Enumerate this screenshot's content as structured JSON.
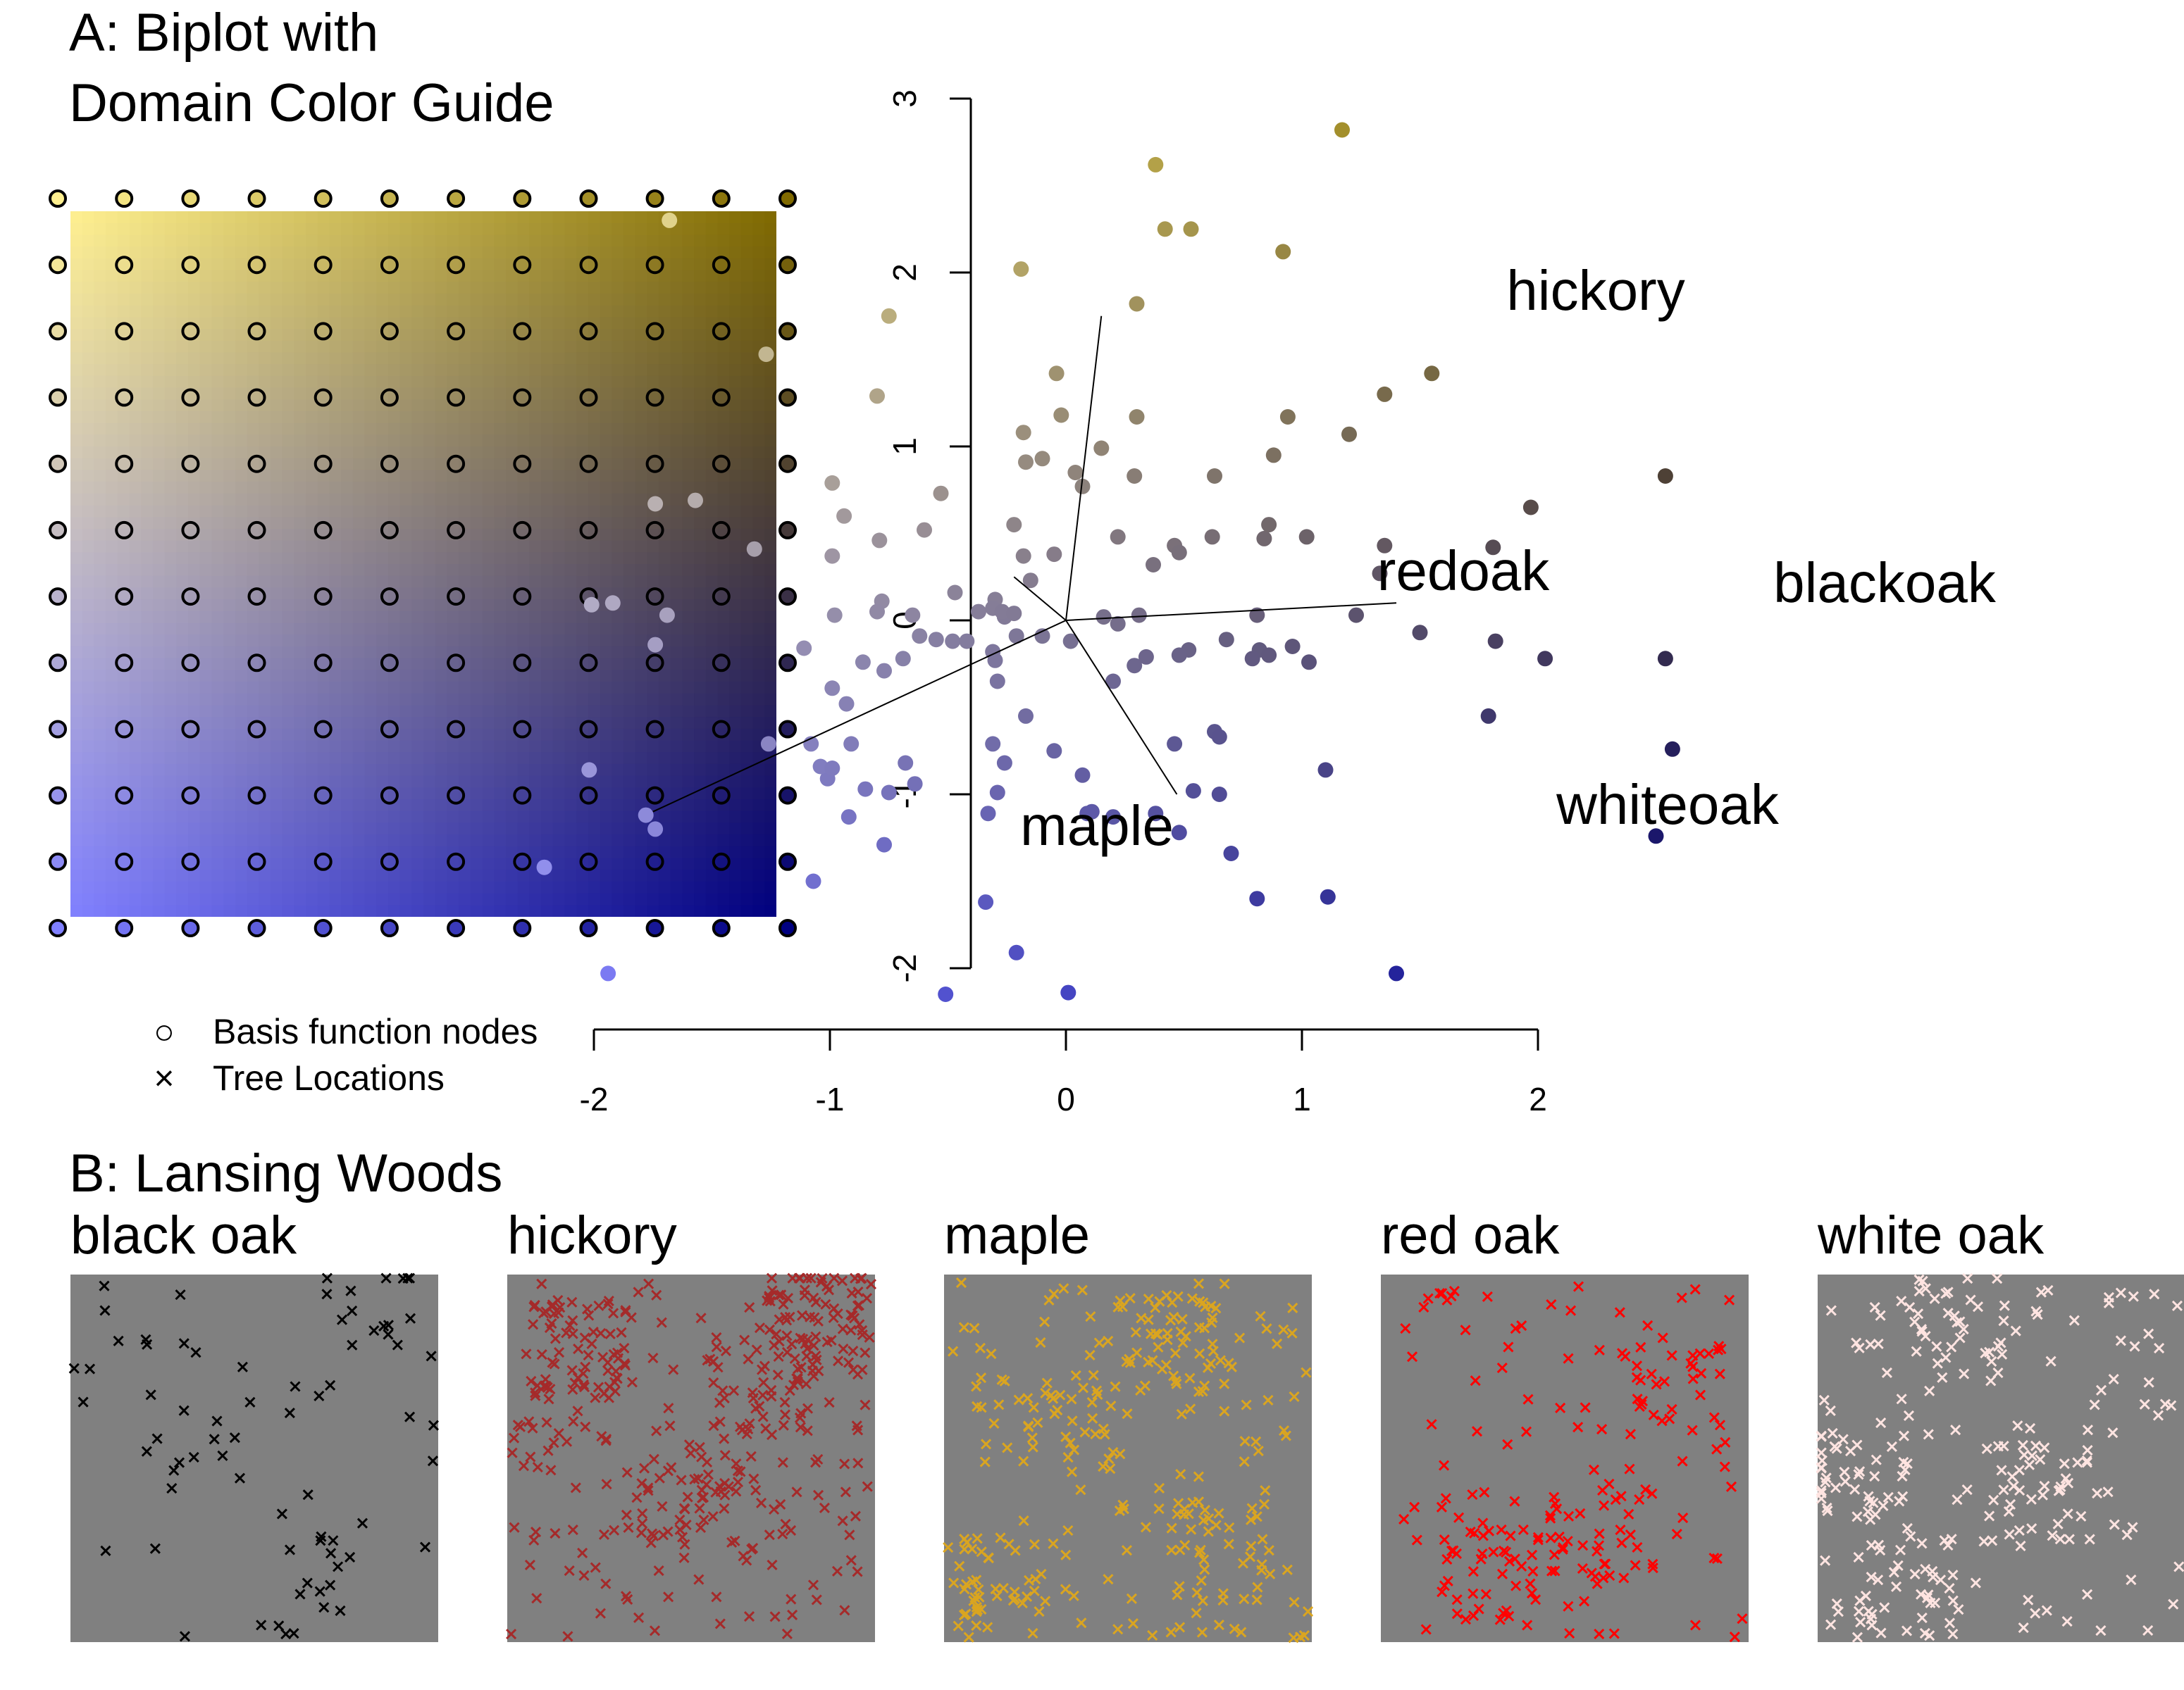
{
  "panel_a": {
    "title_line1": "A: Biplot with",
    "title_line2": "Domain Color Guide",
    "legend": {
      "nodes_label": "Basis function nodes",
      "nodes_symbol": "○",
      "trees_label": "Tree Locations",
      "trees_symbol": "×"
    }
  },
  "panel_b": {
    "title": "B: Lansing Woods"
  },
  "colors": {
    "corner_top_left": "#fff090",
    "corner_top_right": "#806a00",
    "corner_bottom_left": "#8080ff",
    "corner_bottom_right": "#000080",
    "plot_background": "#808080"
  },
  "chart_data": [
    {
      "type": "heatmap",
      "title": "A: Biplot with Domain Color Guide",
      "description_of_encoding": "",
      "grid_nodes": {
        "columns": 12,
        "rows": 12,
        "marker": "open circle"
      },
      "legend": [
        "Basis function nodes",
        "Tree Locations"
      ]
    },
    {
      "type": "scatter",
      "title": "",
      "xlabel": "",
      "ylabel": "",
      "xlim": [
        -2.1,
        2.7
      ],
      "ylim": [
        -2.1,
        3.1
      ],
      "xticks": [
        "-2",
        "-1",
        "0",
        "1",
        "2"
      ],
      "yticks": [
        "-2",
        "-1",
        "0",
        "1",
        "2",
        "3"
      ],
      "arrows": [
        {
          "name": "hickory",
          "x": 0.15,
          "y": 1.75
        },
        {
          "name": "redoak",
          "x": -0.22,
          "y": 0.25
        },
        {
          "name": "blackoak",
          "x": 1.4,
          "y": 0.1
        },
        {
          "name": "whiteoak",
          "x": 0.47,
          "y": -1.0
        },
        {
          "name": "maple",
          "x": -1.75,
          "y": -1.1
        }
      ],
      "points": [
        [
          -1.68,
          2.3
        ],
        [
          0.38,
          2.62
        ],
        [
          0.42,
          2.25
        ],
        [
          0.53,
          2.25
        ],
        [
          1.17,
          2.82
        ],
        [
          -0.19,
          2.02
        ],
        [
          0.3,
          1.82
        ],
        [
          0.92,
          2.12
        ],
        [
          -1.27,
          1.53
        ],
        [
          -0.75,
          1.75
        ],
        [
          -0.8,
          1.29
        ],
        [
          -0.04,
          1.42
        ],
        [
          0.3,
          1.17
        ],
        [
          1.35,
          1.3
        ],
        [
          1.55,
          1.42
        ],
        [
          -0.02,
          1.18
        ],
        [
          0.15,
          0.99
        ],
        [
          0.94,
          1.17
        ],
        [
          0.88,
          0.95
        ],
        [
          -0.18,
          1.08
        ],
        [
          -0.1,
          0.93
        ],
        [
          -0.17,
          0.91
        ],
        [
          0.04,
          0.85
        ],
        [
          0.07,
          0.77
        ],
        [
          0.29,
          0.83
        ],
        [
          0.63,
          0.83
        ],
        [
          1.2,
          1.07
        ],
        [
          1.97,
          0.65
        ],
        [
          2.54,
          0.83
        ],
        [
          -1.57,
          0.69
        ],
        [
          -1.74,
          0.67
        ],
        [
          -0.99,
          0.79
        ],
        [
          -0.94,
          0.6
        ],
        [
          -0.53,
          0.73
        ],
        [
          -0.6,
          0.52
        ],
        [
          -0.22,
          0.55
        ],
        [
          -0.05,
          0.38
        ],
        [
          0.22,
          0.48
        ],
        [
          0.46,
          0.43
        ],
        [
          0.62,
          0.48
        ],
        [
          0.84,
          0.47
        ],
        [
          0.86,
          0.55
        ],
        [
          1.02,
          0.48
        ],
        [
          1.35,
          0.43
        ],
        [
          1.81,
          0.42
        ],
        [
          -1.32,
          0.41
        ],
        [
          -0.79,
          0.46
        ],
        [
          -0.99,
          0.37
        ],
        [
          0.37,
          0.32
        ],
        [
          0.48,
          0.39
        ],
        [
          1.33,
          0.27
        ],
        [
          -0.47,
          0.16
        ],
        [
          -0.3,
          0.12
        ],
        [
          -0.15,
          0.23
        ],
        [
          -0.18,
          0.37
        ],
        [
          -1.92,
          0.1
        ],
        [
          -2.01,
          0.09
        ],
        [
          -1.69,
          0.03
        ],
        [
          -0.98,
          0.03
        ],
        [
          -0.78,
          0.11
        ],
        [
          -0.8,
          0.05
        ],
        [
          -0.65,
          0.03
        ],
        [
          -0.37,
          0.05
        ],
        [
          -0.31,
          0.07
        ],
        [
          -0.26,
          0.02
        ],
        [
          -0.27,
          0.05
        ],
        [
          -0.22,
          0.04
        ],
        [
          -0.21,
          -0.09
        ],
        [
          -0.1,
          -0.09
        ],
        [
          0.02,
          -0.12
        ],
        [
          -0.55,
          -0.11
        ],
        [
          -0.62,
          -0.09
        ],
        [
          -0.48,
          -0.12
        ],
        [
          -0.42,
          -0.12
        ],
        [
          -1.11,
          -0.16
        ],
        [
          -1.74,
          -0.14
        ],
        [
          -0.86,
          -0.24
        ],
        [
          -0.77,
          -0.29
        ],
        [
          -0.69,
          -0.22
        ],
        [
          -0.31,
          -0.18
        ],
        [
          -0.3,
          -0.23
        ],
        [
          -0.29,
          -0.35
        ],
        [
          0.29,
          -0.26
        ],
        [
          0.34,
          -0.21
        ],
        [
          0.52,
          -0.17
        ],
        [
          0.48,
          -0.2
        ],
        [
          0.68,
          -0.11
        ],
        [
          0.82,
          -0.17
        ],
        [
          0.86,
          -0.2
        ],
        [
          0.79,
          -0.22
        ],
        [
          0.96,
          -0.15
        ],
        [
          0.16,
          0.02
        ],
        [
          0.22,
          -0.02
        ],
        [
          0.31,
          0.03
        ],
        [
          0.81,
          0.03
        ],
        [
          1.23,
          0.03
        ],
        [
          1.5,
          -0.07
        ],
        [
          1.82,
          -0.12
        ],
        [
          2.03,
          -0.22
        ],
        [
          1.03,
          -0.24
        ],
        [
          0.2,
          -0.35
        ],
        [
          -0.99,
          -0.39
        ],
        [
          -0.93,
          -0.48
        ],
        [
          -0.17,
          -0.55
        ],
        [
          -1.26,
          -0.71
        ],
        [
          -1.08,
          -0.71
        ],
        [
          -0.91,
          -0.71
        ],
        [
          -0.68,
          -0.82
        ],
        [
          -0.31,
          -0.71
        ],
        [
          -0.26,
          -0.82
        ],
        [
          -0.05,
          -0.75
        ],
        [
          0.46,
          -0.71
        ],
        [
          0.63,
          -0.64
        ],
        [
          0.65,
          -0.67
        ],
        [
          1.79,
          -0.55
        ],
        [
          2.57,
          -0.74
        ],
        [
          1.1,
          -0.86
        ],
        [
          -2.02,
          -0.86
        ],
        [
          -1.01,
          -0.91
        ],
        [
          -1.04,
          -0.84
        ],
        [
          -0.99,
          -0.85
        ],
        [
          -0.64,
          -0.94
        ],
        [
          -0.85,
          -0.97
        ],
        [
          -0.75,
          -0.99
        ],
        [
          -0.29,
          -0.99
        ],
        [
          0.07,
          -0.89
        ],
        [
          0.54,
          -0.98
        ],
        [
          0.65,
          -1.0
        ],
        [
          -0.33,
          -1.11
        ],
        [
          0.11,
          -1.1
        ],
        [
          0.09,
          -1.11
        ],
        [
          0.2,
          -1.13
        ],
        [
          0.38,
          -1.11
        ],
        [
          0.48,
          -1.22
        ],
        [
          -1.78,
          -1.12
        ],
        [
          -1.74,
          -1.2
        ],
        [
          -0.92,
          -1.13
        ],
        [
          -0.77,
          -1.29
        ],
        [
          0.7,
          -1.34
        ],
        [
          2.5,
          -1.24
        ],
        [
          -2.21,
          -1.42
        ],
        [
          -1.07,
          -1.5
        ],
        [
          -0.34,
          -1.62
        ],
        [
          0.81,
          -1.6
        ],
        [
          1.11,
          -1.59
        ],
        [
          -0.21,
          -1.91
        ],
        [
          -1.94,
          -2.03
        ],
        [
          -0.51,
          -2.15
        ],
        [
          0.01,
          -2.14
        ],
        [
          1.4,
          -2.03
        ],
        [
          2.54,
          -0.22
        ]
      ]
    },
    {
      "type": "scatter",
      "title": "B: Lansing Woods",
      "facets": [
        {
          "name": "black oak",
          "color": "#000000",
          "count": 135
        },
        {
          "name": "hickory",
          "color": "#a52a2a",
          "count": 703
        },
        {
          "name": "maple",
          "color": "#daa520",
          "count": 514
        },
        {
          "name": "red oak",
          "color": "#ff0000",
          "count": 346
        },
        {
          "name": "white oak",
          "color": "#ffe4e1",
          "count": 448
        }
      ],
      "xlim": [
        0,
        1
      ],
      "ylim": [
        0,
        1
      ]
    }
  ]
}
